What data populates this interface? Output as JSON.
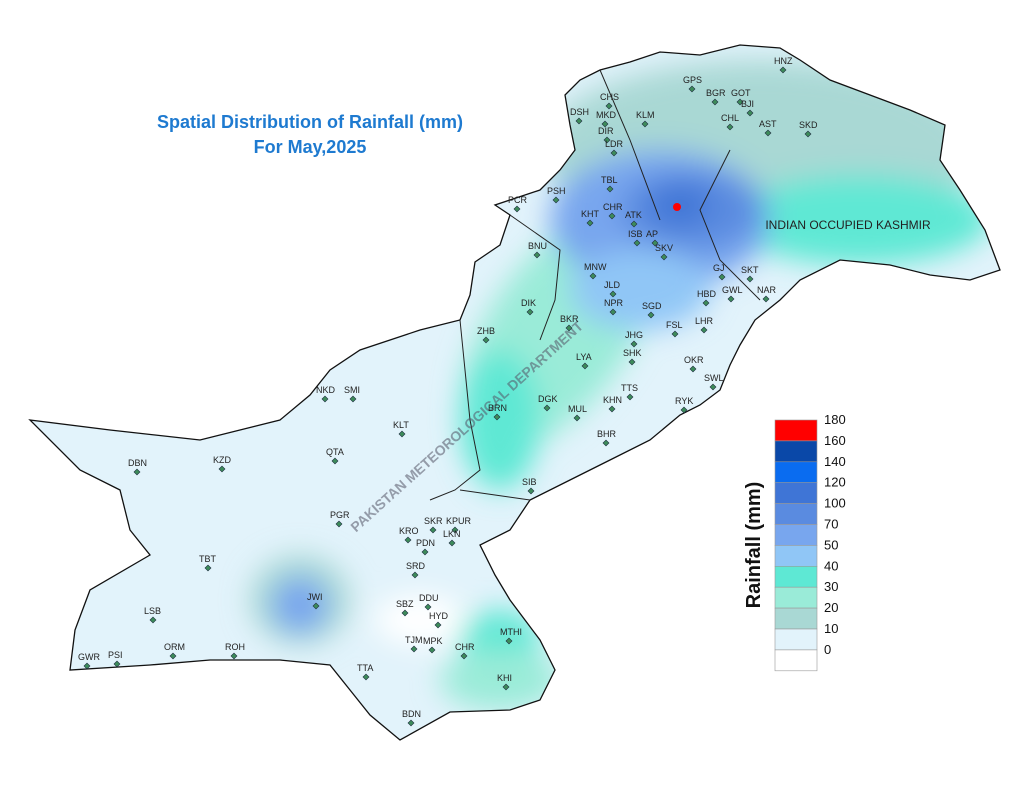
{
  "title": [
    "Spatial Distribution of Rainfall (mm)",
    "For May,2025"
  ],
  "region_label": "INDIAN OCCUPIED KASHMIR",
  "watermark": "PAKISTAN METEOROLOGICAL DEPARTMENT",
  "legend": {
    "title": "Rainfall (mm)",
    "items": [
      {
        "value": 180,
        "color": "#ff0000"
      },
      {
        "value": 160,
        "color": "#0a48a8"
      },
      {
        "value": 140,
        "color": "#0a6cf0"
      },
      {
        "value": 120,
        "color": "#3f75d6"
      },
      {
        "value": 100,
        "color": "#5a8be0"
      },
      {
        "value": 70,
        "color": "#78a6ee"
      },
      {
        "value": 50,
        "color": "#90c6f6"
      },
      {
        "value": 40,
        "color": "#5ee8d4"
      },
      {
        "value": 30,
        "color": "#9aebd8"
      },
      {
        "value": 20,
        "color": "#a9d8d4"
      },
      {
        "value": 10,
        "color": "#e2f3fb"
      },
      {
        "value": 0,
        "color": "#ffffff"
      }
    ]
  },
  "stations": [
    "HNZ",
    "GPS",
    "BGR",
    "GOT",
    "CHS",
    "DSH",
    "MKD",
    "BJI",
    "KLM",
    "DIR",
    "AST",
    "SKD",
    "CHL",
    "LDR",
    "PCR",
    "PSH",
    "KHT",
    "TBL",
    "CHR",
    "ATK",
    "ISB",
    "AP",
    "SKV",
    "MNW",
    "JLD",
    "NPR",
    "DIK",
    "BKR",
    "BNU",
    "ZHB",
    "LYA",
    "SGD",
    "FSL",
    "LHR",
    "JHG",
    "SHK",
    "GJ",
    "SKT",
    "HBD",
    "GWL",
    "NAR",
    "OKR",
    "SWL",
    "TTS",
    "KHN",
    "MUL",
    "DGK",
    "BRN",
    "BHR",
    "RYK",
    "SIB",
    "KLT",
    "QTA",
    "SMI",
    "NKD",
    "DBN",
    "KZD",
    "PGR",
    "TBT",
    "LSB",
    "JWI",
    "GWR",
    "PSI",
    "ORM",
    "ROH",
    "SKR",
    "KPUR",
    "LKN",
    "KRO",
    "PDN",
    "SRD",
    "SBZ",
    "DDU",
    "HYD",
    "TJM",
    "MPK",
    "CHR",
    "MTHI",
    "KHI",
    "TTA",
    "BDN"
  ]
}
